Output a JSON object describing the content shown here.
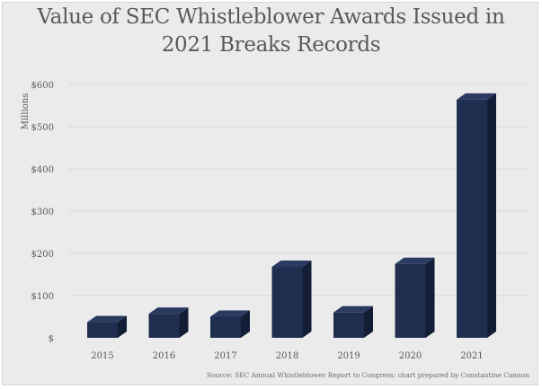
{
  "chart_data": {
    "type": "bar",
    "title_lines": [
      "Value of SEC Whistleblower Awards Issued in",
      "2021 Breaks Records"
    ],
    "ylabel": "Millions",
    "xlabel": "",
    "categories": [
      "2015",
      "2016",
      "2017",
      "2018",
      "2019",
      "2020",
      "2021"
    ],
    "values": [
      37,
      57,
      50,
      168,
      60,
      175,
      564
    ],
    "ylim": [
      0,
      600
    ],
    "yticks": [
      0,
      100,
      200,
      300,
      400,
      500,
      600
    ],
    "ytick_labels": [
      "$",
      "$100",
      "$200",
      "$300",
      "$400",
      "$500",
      "$600"
    ],
    "grid": true,
    "legend": "none",
    "bar_style": "3d",
    "source": "Source: SEC Annual Whistleblower Report to Congress; chart prepared by Constantine Cannon"
  },
  "colors": {
    "bar_front": "#1f2d4e",
    "bar_side": "#131d36",
    "bar_top": "#2a3a61",
    "gridline": "#d9d9d9",
    "background": "#ebebeb",
    "text": "#595959"
  }
}
